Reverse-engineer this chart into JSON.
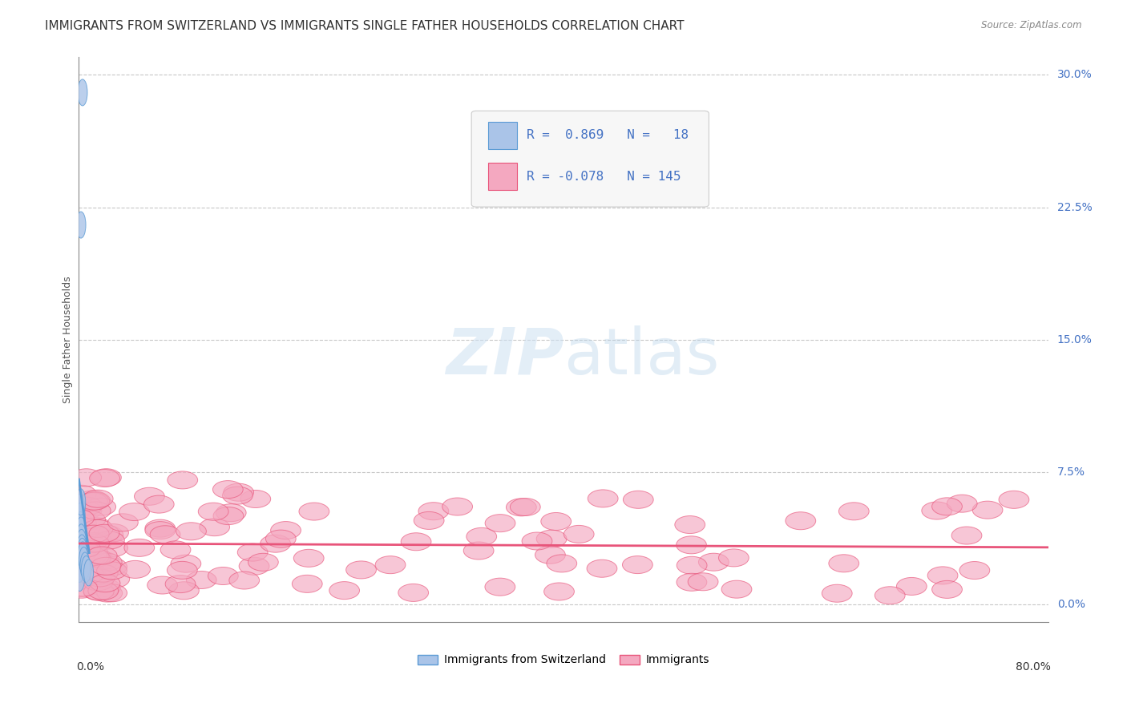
{
  "title": "IMMIGRANTS FROM SWITZERLAND VS IMMIGRANTS SINGLE FATHER HOUSEHOLDS CORRELATION CHART",
  "source": "Source: ZipAtlas.com",
  "ylabel": "Single Father Households",
  "ytick_labels": [
    "0.0%",
    "7.5%",
    "15.0%",
    "22.5%",
    "30.0%"
  ],
  "ytick_values": [
    0.0,
    7.5,
    15.0,
    22.5,
    30.0
  ],
  "xlim": [
    0.0,
    80.0
  ],
  "ylim": [
    -1.0,
    31.0
  ],
  "legend_entries": [
    {
      "label": "Immigrants from Switzerland",
      "R": 0.869,
      "N": 18,
      "color": "#aac4e8"
    },
    {
      "label": "Immigrants",
      "R": -0.078,
      "N": 145,
      "color": "#f4a8c0"
    }
  ],
  "blue_color": "#5b9bd5",
  "blue_scatter_color": "#aac4e8",
  "pink_color": "#e8547a",
  "pink_scatter_color": "#f4a8c0",
  "grid_color": "#c8c8c8",
  "background_color": "#ffffff",
  "title_fontsize": 11,
  "axis_label_fontsize": 9,
  "tick_fontsize": 10
}
